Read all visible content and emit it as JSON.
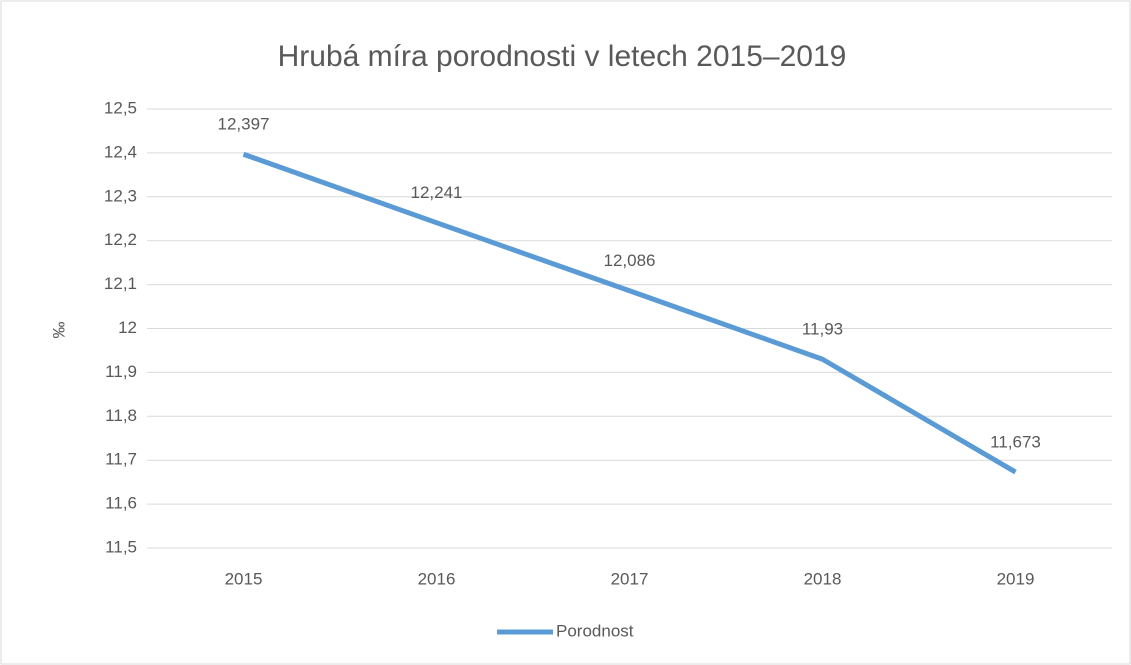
{
  "chart_data": {
    "type": "line",
    "title": "Hrubá míra porodnosti v letech 2015–2019",
    "ylabel": "‰",
    "categories": [
      "2015",
      "2016",
      "2017",
      "2018",
      "2019"
    ],
    "series": [
      {
        "name": "Porodnost",
        "color": "#5b9bd5",
        "values": [
          12.397,
          12.241,
          12.086,
          11.93,
          11.673
        ],
        "value_labels": [
          "12,397",
          "12,241",
          "12,086",
          "11,93",
          "11,673"
        ]
      }
    ],
    "ylim": [
      11.5,
      12.5
    ],
    "yticks": [
      {
        "value": 11.5,
        "label": "11,5"
      },
      {
        "value": 11.6,
        "label": "11,6"
      },
      {
        "value": 11.7,
        "label": "11,7"
      },
      {
        "value": 11.8,
        "label": "11,8"
      },
      {
        "value": 11.9,
        "label": "11,9"
      },
      12,
      {
        "value": 12.1,
        "label": "12,1"
      },
      {
        "value": 12.2,
        "label": "12,2"
      },
      {
        "value": 12.3,
        "label": "12,3"
      },
      {
        "value": 12.4,
        "label": "12,4"
      },
      {
        "value": 12.5,
        "label": "12,5"
      }
    ],
    "grid": true,
    "legend": "bottom"
  }
}
